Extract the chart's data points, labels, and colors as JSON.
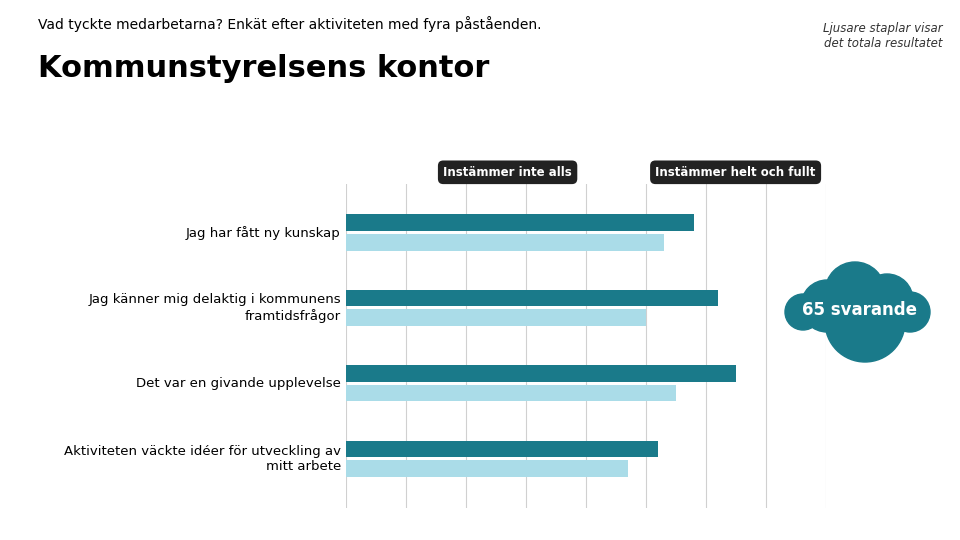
{
  "title_subtitle": "Vad tyckte medarbetarna? Enkät efter aktiviteten med fyra påståenden.",
  "title_main": "Kommunstyrelsens kontor",
  "legend_left": "Instämmer inte alls",
  "legend_right": "Instämmer helt och fullt",
  "side_note_line1": "Ljusare staplar visar",
  "side_note_line2": "det totala resultatet",
  "cloud_text": "65 svarande",
  "categories": [
    "Jag har fått ny kunskap",
    "Jag känner mig delaktig i kommunens\nframtidsfrågor",
    "Det var en givande upplevelse",
    "Aktiviteten väckte idéer för utveckling av\nmitt arbete"
  ],
  "dark_values": [
    3.9,
    4.1,
    4.25,
    3.6
  ],
  "light_values": [
    3.65,
    3.5,
    3.75,
    3.35
  ],
  "xmin": 1,
  "xmax": 5,
  "dark_color": "#1a7a8a",
  "light_color": "#aadce8",
  "background_color": "#ffffff",
  "grid_color": "#d0d0d0",
  "label_fontsize": 9.5,
  "title_sub_fontsize": 10,
  "main_title_fontsize": 22,
  "bubble_fontsize": 8.5,
  "cloud_fontsize": 12
}
